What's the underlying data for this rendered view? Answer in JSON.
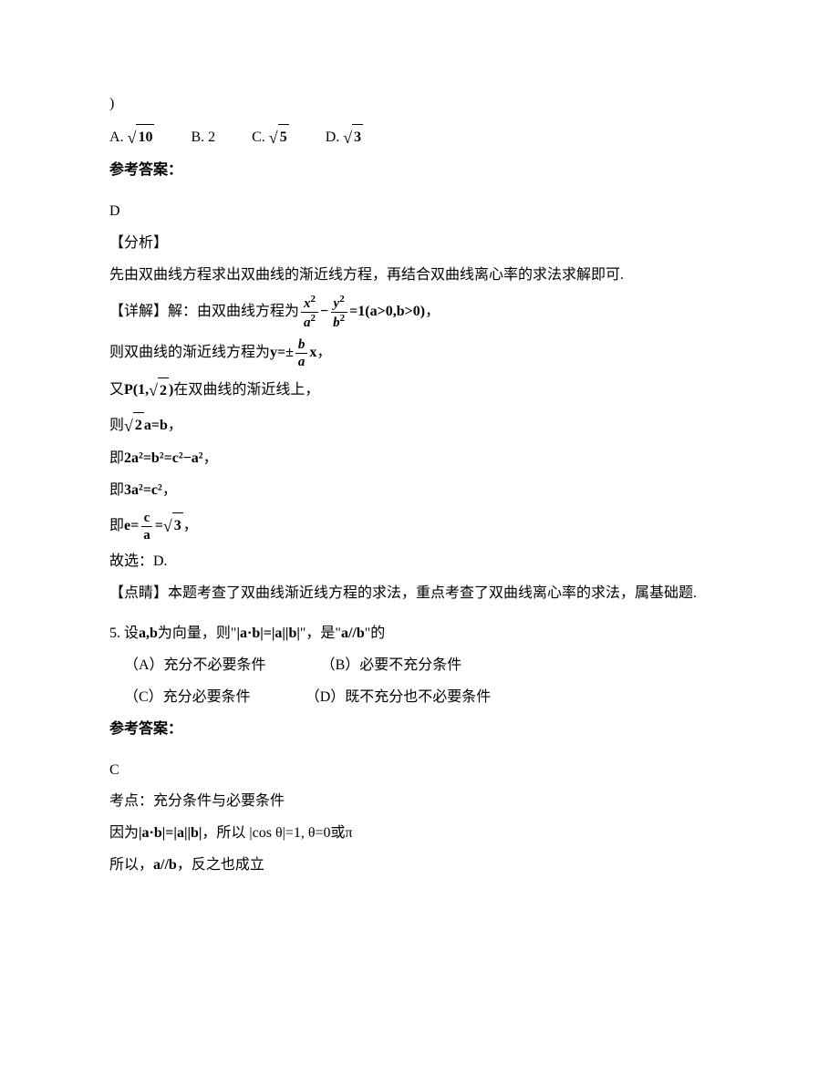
{
  "q4": {
    "closing": ")",
    "options": {
      "a_label": "A.",
      "a_val": "10",
      "b_label": "B. 2",
      "c_label": "C.",
      "c_val": "5",
      "d_label": "D.",
      "d_val": "3"
    },
    "answer_header": "参考答案：",
    "answer": "D",
    "analysis_label": "【分析】",
    "analysis_text": "先由双曲线方程求出双曲线的渐近线方程，再结合双曲线离心率的求法求解即可.",
    "detail_label": "【详解】解：由双曲线方程为",
    "hyperbola_cond": "(a>0,b>0)",
    "asymptote_prefix": "则双曲线的渐近线方程为",
    "asymptote_eq_prefix": "y=±",
    "asymptote_eq_suffix": "x",
    "comma": "，",
    "point_prefix": "又",
    "point_label": "P(1,",
    "point_val": "2",
    "point_close": ")",
    "point_suffix": "在双曲线的渐近线上，",
    "then1_prefix": "则",
    "then1_sqrtval": "2",
    "then1_eq": "a=b",
    "then2_prefix": "即",
    "then2_eq": "2a²=b²=c²−a²",
    "then3_prefix": "即",
    "then3_eq": "3a²=c²",
    "then4_prefix": "即",
    "then4_e": "e=",
    "then4_frac_num": "c",
    "then4_frac_den": "a",
    "then4_eq": "=",
    "then4_sqrtval": "3",
    "conclusion": "故选：D.",
    "comment_label": "【点睛】",
    "comment_text": "本题考查了双曲线渐近线方程的求法，重点考查了双曲线离心率的求法，属基础题."
  },
  "q5": {
    "number": "5. 设",
    "vectors": "a,b",
    "text1": "为向量，则\"",
    "eq1_left": "|a·b|=|a||b|",
    "text2": "\"，是\"",
    "parallel": "a//b",
    "text3": "\"的",
    "optA": "（A）充分不必要条件",
    "optB": "（B）必要不充分条件",
    "optC": "（C）充分必要条件",
    "optD": "（D）既不充分也不必要条件",
    "answer_header": "参考答案：",
    "answer": "C",
    "topic": "考点：充分条件与必要条件",
    "because_prefix": "因为",
    "because_eq": "|a·b|=|a||b|",
    "because_text": "，所以 |cos θ|=1, θ=0或π",
    "so_prefix": "所以，",
    "so_parallel": "a//b",
    "so_suffix": "，反之也成立"
  }
}
